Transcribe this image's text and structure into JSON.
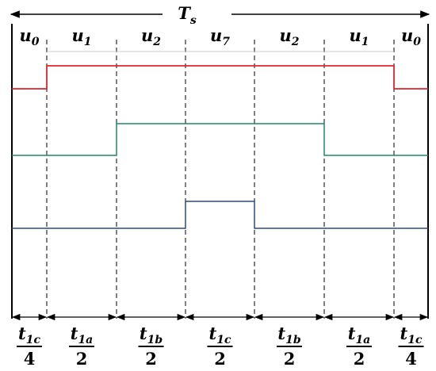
{
  "period_label": {
    "main": "T",
    "sub": "s"
  },
  "vectors": [
    {
      "main": "u",
      "sub": "0"
    },
    {
      "main": "u",
      "sub": "1"
    },
    {
      "main": "u",
      "sub": "2"
    },
    {
      "main": "u",
      "sub": "7"
    },
    {
      "main": "u",
      "sub": "2"
    },
    {
      "main": "u",
      "sub": "1"
    },
    {
      "main": "u",
      "sub": "0"
    }
  ],
  "intervals": [
    {
      "num_main": "t",
      "num_sub": "1c",
      "den": "4"
    },
    {
      "num_main": "t",
      "num_sub": "1a",
      "den": "2"
    },
    {
      "num_main": "t",
      "num_sub": "1b",
      "den": "2"
    },
    {
      "num_main": "t",
      "num_sub": "1c",
      "den": "2"
    },
    {
      "num_main": "t",
      "num_sub": "1b",
      "den": "2"
    },
    {
      "num_main": "t",
      "num_sub": "1a",
      "den": "2"
    },
    {
      "num_main": "t",
      "num_sub": "1c",
      "den": "4"
    }
  ]
}
